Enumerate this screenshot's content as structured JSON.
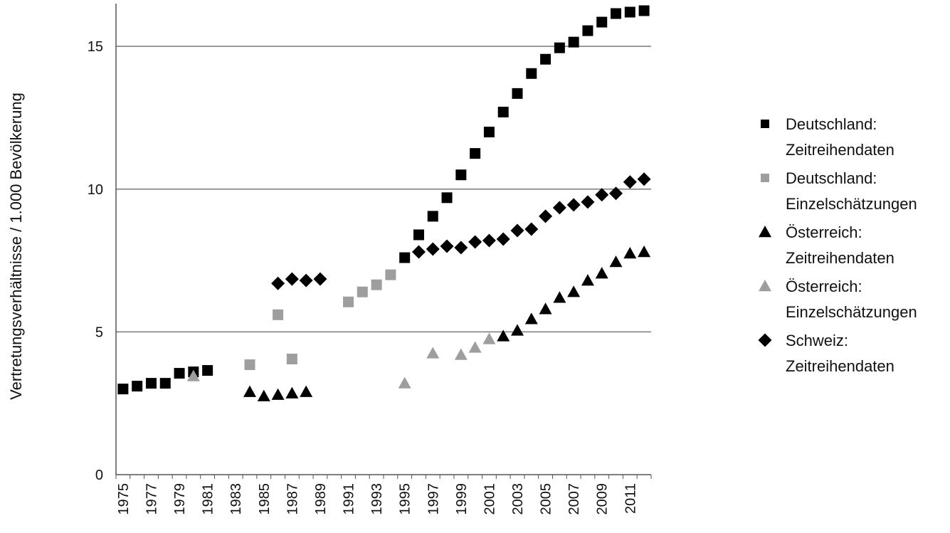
{
  "chart_data": {
    "type": "scatter",
    "title": "",
    "xlabel": "",
    "ylabel": "Vertretungsverhältnisse / 1.000 Bevölkerung",
    "xlim": [
      1975,
      2012
    ],
    "ylim": [
      0,
      16.5
    ],
    "y_ticks": [
      0,
      5,
      10,
      15
    ],
    "x_ticks": [
      "1975",
      "1977",
      "1979",
      "1981",
      "1983",
      "1985",
      "1987",
      "1989",
      "1991",
      "1993",
      "1995",
      "1997",
      "1999",
      "2001",
      "2003",
      "2005",
      "2007",
      "2009",
      "2011"
    ],
    "grid": "horizontal",
    "legend_position": "right",
    "series": [
      {
        "name": "Deutschland: Zeitreihendaten",
        "legend_lines": [
          "Deutschland:",
          "Zeitreihendaten"
        ],
        "marker": "square",
        "color": "#000000",
        "points": [
          [
            1975,
            3.0
          ],
          [
            1976,
            3.1
          ],
          [
            1977,
            3.2
          ],
          [
            1978,
            3.2
          ],
          [
            1979,
            3.55
          ],
          [
            1980,
            3.6
          ],
          [
            1981,
            3.65
          ],
          [
            1995,
            7.6
          ],
          [
            1996,
            8.4
          ],
          [
            1997,
            9.05
          ],
          [
            1998,
            9.7
          ],
          [
            1999,
            10.5
          ],
          [
            2000,
            11.25
          ],
          [
            2001,
            12.0
          ],
          [
            2002,
            12.7
          ],
          [
            2003,
            13.35
          ],
          [
            2004,
            14.05
          ],
          [
            2005,
            14.55
          ],
          [
            2006,
            14.95
          ],
          [
            2007,
            15.15
          ],
          [
            2008,
            15.55
          ],
          [
            2009,
            15.85
          ],
          [
            2010,
            16.15
          ],
          [
            2011,
            16.2
          ],
          [
            2012,
            16.25
          ]
        ]
      },
      {
        "name": "Deutschland: Einzelschätzungen",
        "legend_lines": [
          "Deutschland:",
          "Einzelschätzungen"
        ],
        "marker": "square",
        "color": "#9e9e9e",
        "points": [
          [
            1984,
            3.85
          ],
          [
            1986,
            5.6
          ],
          [
            1987,
            4.05
          ],
          [
            1991,
            6.05
          ],
          [
            1992,
            6.4
          ],
          [
            1993,
            6.65
          ],
          [
            1994,
            7.0
          ]
        ]
      },
      {
        "name": "Österreich: Zeitreihendaten",
        "legend_lines": [
          "Österreich:",
          "Zeitreihendaten"
        ],
        "marker": "triangle",
        "color": "#000000",
        "points": [
          [
            1984,
            2.9
          ],
          [
            1985,
            2.75
          ],
          [
            1986,
            2.8
          ],
          [
            1987,
            2.85
          ],
          [
            1988,
            2.9
          ],
          [
            2002,
            4.85
          ],
          [
            2003,
            5.05
          ],
          [
            2004,
            5.45
          ],
          [
            2005,
            5.8
          ],
          [
            2006,
            6.2
          ],
          [
            2007,
            6.4
          ],
          [
            2008,
            6.8
          ],
          [
            2009,
            7.05
          ],
          [
            2010,
            7.45
          ],
          [
            2011,
            7.75
          ],
          [
            2012,
            7.8
          ]
        ]
      },
      {
        "name": "Österreich: Einzelschätzungen",
        "legend_lines": [
          "Österreich:",
          "Einzelschätzungen"
        ],
        "marker": "triangle",
        "color": "#9e9e9e",
        "points": [
          [
            1980,
            3.45
          ],
          [
            1995,
            3.2
          ],
          [
            1997,
            4.25
          ],
          [
            1999,
            4.2
          ],
          [
            2000,
            4.45
          ],
          [
            2001,
            4.75
          ]
        ]
      },
      {
        "name": "Schweiz: Zeitreihendaten",
        "legend_lines": [
          "Schweiz:",
          "Zeitreihendaten"
        ],
        "marker": "diamond",
        "color": "#000000",
        "points": [
          [
            1986,
            6.7
          ],
          [
            1987,
            6.85
          ],
          [
            1988,
            6.8
          ],
          [
            1989,
            6.85
          ],
          [
            1996,
            7.8
          ],
          [
            1997,
            7.9
          ],
          [
            1998,
            8.0
          ],
          [
            1999,
            7.95
          ],
          [
            2000,
            8.15
          ],
          [
            2001,
            8.2
          ],
          [
            2002,
            8.25
          ],
          [
            2003,
            8.55
          ],
          [
            2004,
            8.6
          ],
          [
            2005,
            9.05
          ],
          [
            2006,
            9.35
          ],
          [
            2007,
            9.45
          ],
          [
            2008,
            9.55
          ],
          [
            2009,
            9.8
          ],
          [
            2010,
            9.85
          ],
          [
            2011,
            10.25
          ],
          [
            2012,
            10.35
          ]
        ]
      }
    ]
  }
}
